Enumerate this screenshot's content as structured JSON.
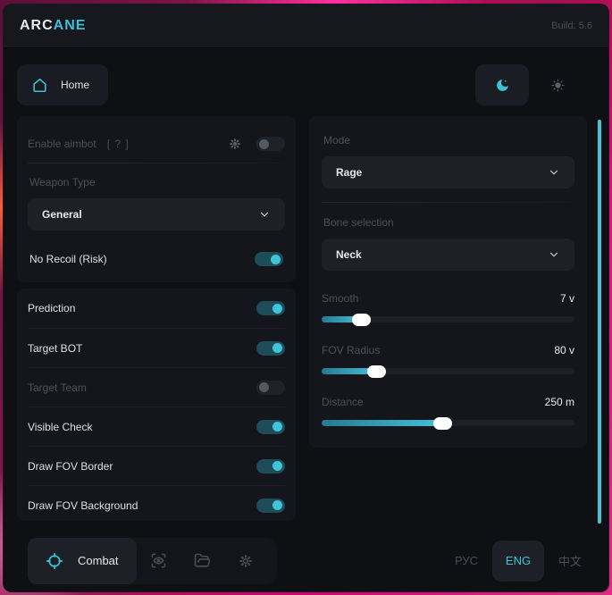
{
  "titlebar": {
    "brand_primary": "ARC",
    "brand_accent": "ANE",
    "build": "Build: 5.6"
  },
  "nav": {
    "home_label": "Home"
  },
  "aimbot": {
    "enable_label": "Enable aimbot",
    "enable_help": "[ ? ]",
    "enable_state": "off",
    "weapon_type_label": "Weapon Type",
    "weapon_type_value": "General",
    "no_recoil_label": "No Recoil (Risk)",
    "no_recoil_state": "on"
  },
  "options": {
    "items": [
      {
        "label": "Prediction",
        "state": "on"
      },
      {
        "label": "Target BOT",
        "state": "on"
      },
      {
        "label": "Target Team",
        "state": "off"
      },
      {
        "label": "Visible Check",
        "state": "on"
      },
      {
        "label": "Draw FOV Border",
        "state": "on"
      },
      {
        "label": "Draw FOV Background",
        "state": "on"
      }
    ]
  },
  "targeting": {
    "mode_label": "Mode",
    "mode_value": "Rage",
    "bone_label": "Bone selection",
    "bone_value": "Neck",
    "sliders": [
      {
        "label": "Smooth",
        "value": "7 v",
        "percent": 16
      },
      {
        "label": "FOV Radius",
        "value": "80 v",
        "percent": 22
      },
      {
        "label": "Distance",
        "value": "250 m",
        "percent": 48
      }
    ]
  },
  "bottombar": {
    "combat_label": "Combat",
    "languages": [
      {
        "label": "РУС",
        "state": "idle"
      },
      {
        "label": "ENG",
        "state": "active"
      },
      {
        "label": "中文",
        "state": "idle"
      }
    ]
  },
  "colors": {
    "accent": "#41c4da",
    "toggle_track_on": "#1e4c59",
    "slider_fill_start": "#257a8e",
    "slider_fill_end": "#45c0da",
    "scrollbar": "#49c2d8"
  }
}
